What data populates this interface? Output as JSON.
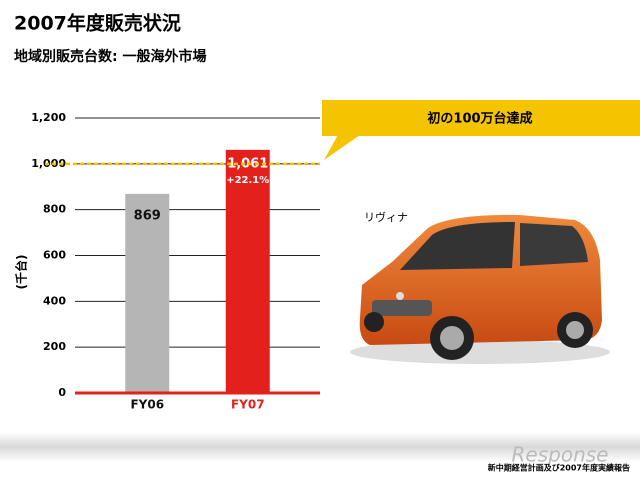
{
  "chart_data": {
    "type": "bar",
    "title": "2007年度販売状況",
    "subtitle": "地域別販売台数: 一般海外市場",
    "y_label": "(千台)",
    "categories": [
      "FY06",
      "FY07"
    ],
    "values": [
      869,
      1061
    ],
    "value_labels": [
      "869",
      "1,061"
    ],
    "colors": [
      "#b5b5b5",
      "#e3201b"
    ],
    "growth_label": "+22.1%",
    "target": 1000,
    "target_color": "#f2c200",
    "callout": "初の100万台達成",
    "ylim": [
      0,
      1200
    ],
    "yticks": [
      0,
      200,
      400,
      600,
      800,
      {
        "value": 1000,
        "label": "1,000"
      },
      {
        "value": 1200,
        "label": "1,200"
      }
    ],
    "grid": true
  },
  "slide": {
    "car_label": "リヴィナ",
    "footer": "新中期経営計画及び2007年度実績報告",
    "watermark": "Response"
  }
}
